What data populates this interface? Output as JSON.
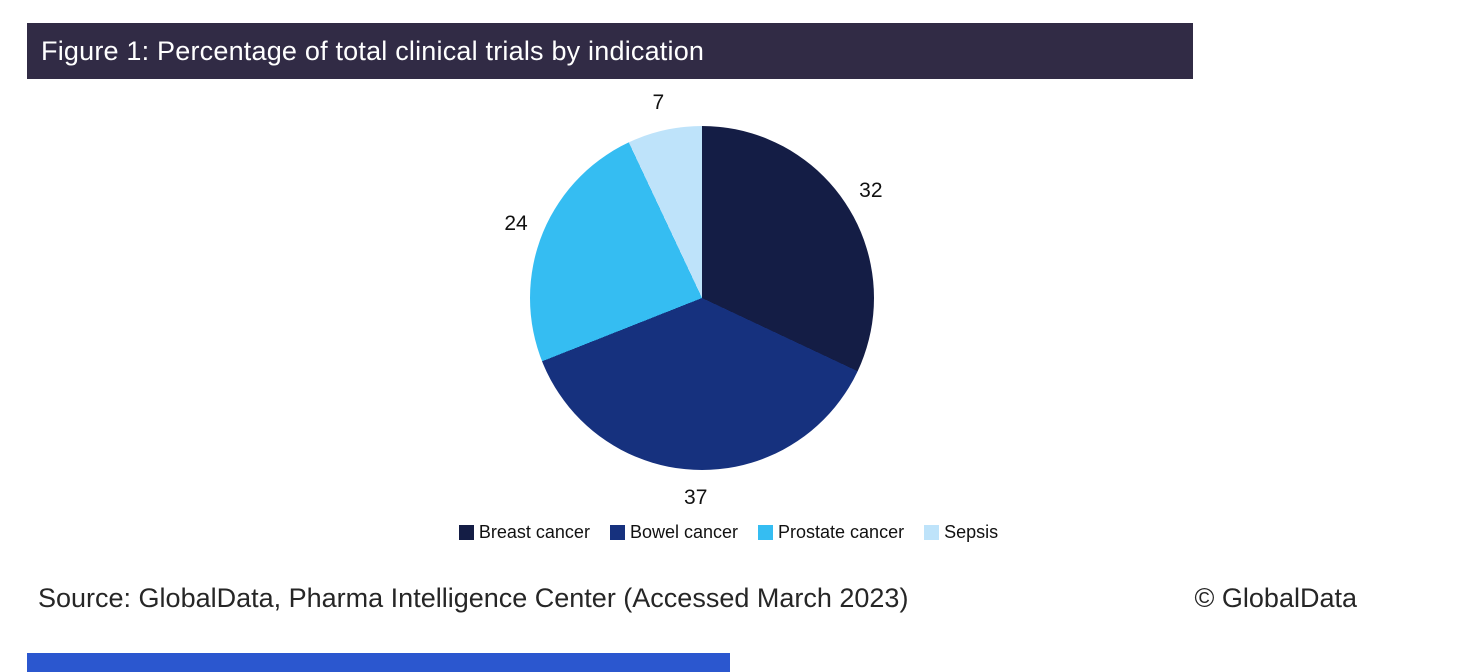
{
  "title": {
    "text": "Figure 1: Percentage of total clinical trials by indication"
  },
  "chart_data": {
    "type": "pie",
    "categories": [
      "Breast cancer",
      "Bowel cancer",
      "Prostate cancer",
      "Sepsis"
    ],
    "values": [
      32,
      37,
      24,
      7
    ],
    "colors": [
      "#141d45",
      "#16317e",
      "#35bdf2",
      "#bee3fa"
    ],
    "start_angle_deg": 0,
    "direction": "clockwise",
    "data_labels": "outside",
    "legend_position": "bottom",
    "title": "Figure 1: Percentage of total clinical trials by indication"
  },
  "footer": {
    "source": "Source: GlobalData, Pharma Intelligence Center (Accessed March 2023)",
    "copyright": "© GlobalData"
  },
  "theme": {
    "background": "#ffffff",
    "title_bar_bg": "#312b45",
    "title_text_color": "#ffffff",
    "accent_bar_color": "#2b57cf",
    "label_color": "#111111"
  }
}
